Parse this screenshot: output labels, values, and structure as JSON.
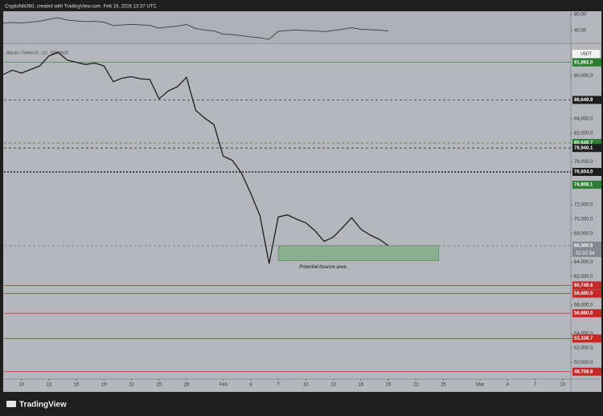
{
  "header": "CryptoNik360, created with TradingView.com, Feb 19, 2026 13:37 UTC",
  "footer": "TradingView",
  "chart_data": [
    {
      "type": "line",
      "series": [
        {
          "name": "Bitcoin / TetherUS · 1D · BINANCE",
          "color": "#1e1e1e",
          "values": [
            90200,
            90800,
            90400,
            90900,
            91400,
            92800,
            93300,
            92200,
            91900,
            91600,
            91800,
            91400,
            89200,
            89700,
            89900,
            89600,
            89500,
            86800,
            87900,
            88500,
            89800,
            85200,
            84100,
            83200,
            78800,
            78200,
            76400,
            73600,
            70500,
            63800,
            70300,
            70600,
            70000,
            69500,
            68400,
            66900,
            67500,
            68800,
            70200,
            68600,
            67800,
            67200,
            66300
          ]
        }
      ],
      "x": [
        8,
        9,
        10,
        11,
        12,
        13,
        14,
        15,
        16,
        17,
        18,
        19,
        20,
        21,
        22,
        23,
        24,
        25,
        26,
        27,
        28,
        29,
        30,
        31,
        32,
        33,
        34,
        35,
        36,
        37,
        38,
        39,
        40,
        41,
        42,
        43,
        44,
        45,
        46,
        47,
        48,
        49,
        50
      ],
      "xlim": [
        8.1,
        69.9
      ],
      "xticks": [
        10,
        13,
        16,
        19,
        22,
        25,
        28,
        {
          "value": 32,
          "label": "Feb"
        },
        {
          "value": 35,
          "label": "4"
        },
        {
          "value": 38,
          "label": "7"
        },
        {
          "value": 41,
          "label": "10"
        },
        {
          "value": 44,
          "label": "13"
        },
        {
          "value": 47,
          "label": "16"
        },
        {
          "value": 50,
          "label": "19"
        },
        {
          "value": 53,
          "label": "22"
        },
        {
          "value": 56,
          "label": "25"
        },
        {
          "value": 60,
          "label": "Mar"
        },
        {
          "value": 63,
          "label": "4"
        },
        {
          "value": 66,
          "label": "7"
        },
        {
          "value": 69,
          "label": "10"
        }
      ],
      "ylim": [
        47900,
        94100
      ],
      "yticks": [
        {
          "value": 90000,
          "label": "90,000.0"
        },
        {
          "value": 84000,
          "label": "84,000.0"
        },
        {
          "value": 82000,
          "label": "82,000.0"
        },
        {
          "value": 78000,
          "label": "78,000.0"
        },
        {
          "value": 72000,
          "label": "72,000.0"
        },
        {
          "value": 70000,
          "label": "70,000.0"
        },
        {
          "value": 68000,
          "label": "68,000.0"
        },
        {
          "value": 64000,
          "label": "64,000.0"
        },
        {
          "value": 62000,
          "label": "62,000.0"
        },
        {
          "value": 58000,
          "label": "58,000.0"
        },
        {
          "value": 54000,
          "label": "54,000.0"
        },
        {
          "value": 52000,
          "label": "52,000.0"
        },
        {
          "value": 50000,
          "label": "50,000.0"
        }
      ],
      "currency": "USDT",
      "levels": [
        {
          "value": 91892,
          "label": "91,892.0",
          "color": "#2e7d32",
          "style": "solid"
        },
        {
          "value": 86649.9,
          "label": "86,649.9",
          "color": "#1e1e1e",
          "style": "dashed"
        },
        {
          "value": 80640.7,
          "label": "80,640.7",
          "color": "#2e7d32",
          "style": "dashed"
        },
        {
          "value": 79940.1,
          "label": "79,940.1",
          "color": "#1e1e1e",
          "style": "dashed"
        },
        {
          "value": 76604,
          "label": "76,604.0",
          "color": "#1e1e1e",
          "style": "dotted"
        },
        {
          "value": 74808.1,
          "label": "74,808.1",
          "color": "#2e7d32",
          "style": "none"
        },
        {
          "value": 66300.6,
          "label": "66,300.6",
          "sublabel": "02:22:34",
          "color": "#85888e",
          "style": "dashed"
        },
        {
          "value": 60749.6,
          "label": "60,749.6",
          "color": "#c62828",
          "style": "solid"
        },
        {
          "value": 59600,
          "label": "59,600.0",
          "color": "#c62828",
          "style": "solid"
        },
        {
          "value": 56860,
          "label": "56,860.0",
          "color": "#c62828",
          "style": "solid"
        },
        {
          "value": 53339.7,
          "label": "53,339.7",
          "color": "#c62828",
          "style": "solid"
        },
        {
          "value": 48708.8,
          "label": "48,708.8",
          "color": "#c62828",
          "style": "solid"
        }
      ],
      "zones": [
        {
          "x": [
            38,
            55.5
          ],
          "y": [
            64200,
            66300
          ],
          "color": "#7fae86",
          "label": "Potential bounce area."
        }
      ]
    },
    {
      "type": "line",
      "color": "#2a2a2a",
      "x": [
        8,
        9,
        10,
        11,
        12,
        13,
        14,
        15,
        16,
        17,
        18,
        19,
        20,
        21,
        22,
        23,
        24,
        25,
        26,
        27,
        28,
        29,
        30,
        31,
        32,
        33,
        34,
        35,
        36,
        37,
        38,
        39,
        40,
        41,
        42,
        43,
        44,
        45,
        46,
        47,
        48,
        49,
        50
      ],
      "values": [
        58,
        60,
        59,
        61,
        63,
        68,
        72,
        66,
        64,
        62,
        63,
        61,
        52,
        54,
        55,
        54,
        53,
        46,
        49,
        51,
        55,
        45,
        41,
        39,
        31,
        30,
        27,
        24,
        22,
        18,
        38,
        40,
        41,
        40,
        39,
        37,
        40,
        43,
        47,
        43,
        42,
        41,
        39
      ],
      "xlim": [
        8.1,
        69.9
      ],
      "ylim": [
        16,
        92
      ],
      "yticks": [
        {
          "value": 80,
          "label": "80.00"
        },
        {
          "value": 40,
          "label": "40.00"
        }
      ]
    }
  ]
}
